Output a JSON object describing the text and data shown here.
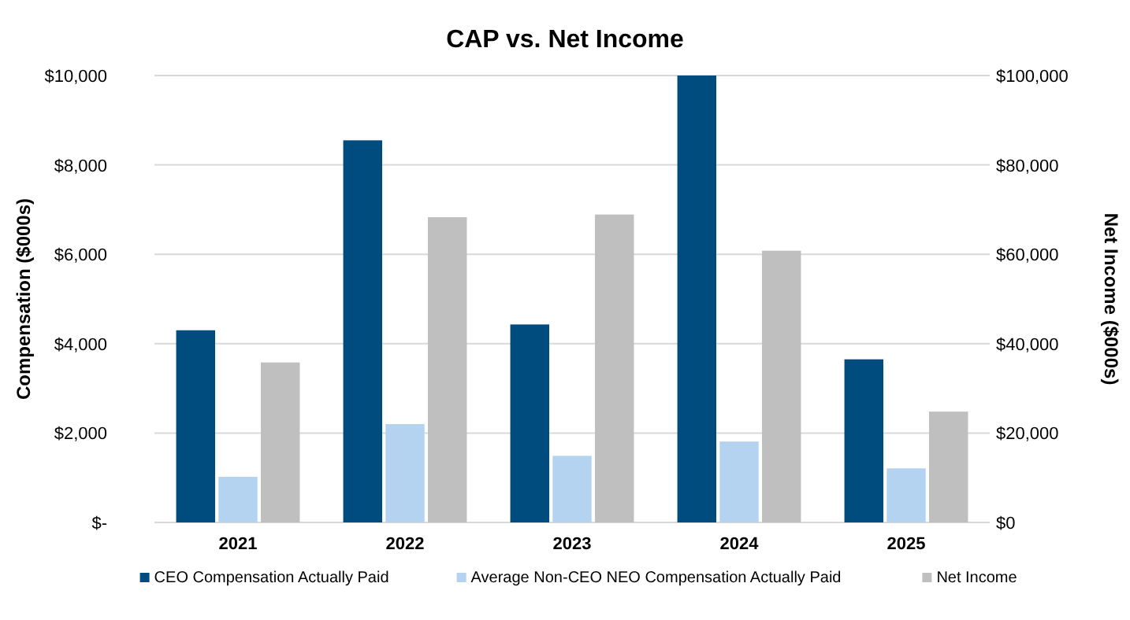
{
  "chart_data": {
    "type": "bar",
    "title": "CAP vs. Net Income",
    "ylabel": "Compensation ($000s)",
    "y2label": "Net Income ($000s)",
    "categories": [
      "2021",
      "2022",
      "2023",
      "2024",
      "2025"
    ],
    "series": [
      {
        "name": "CEO Compensation Actually Paid",
        "color": "#004c7f",
        "values": [
          4300,
          8550,
          4430,
          10000,
          3650
        ]
      },
      {
        "name": "Average Non-CEO NEO Compensation Actually Paid",
        "color": "#b4d3f1",
        "values": [
          1020,
          2200,
          1490,
          1810,
          1210
        ]
      },
      {
        "name": "Net Income",
        "color": "#bfbfbf",
        "axis": "y2",
        "values": [
          35800,
          68300,
          68900,
          60800,
          24800
        ]
      }
    ],
    "ylim": [
      0,
      10000
    ],
    "yticks": [
      {
        "value": 0,
        "label": "$-"
      },
      {
        "value": 2000,
        "label": "$2,000"
      },
      {
        "value": 4000,
        "label": "$4,000"
      },
      {
        "value": 6000,
        "label": "$6,000"
      },
      {
        "value": 8000,
        "label": "$8,000"
      },
      {
        "value": 10000,
        "label": "$10,000"
      }
    ],
    "y2lim": [
      0,
      100000
    ],
    "y2ticks": [
      {
        "value": 0,
        "label": "$0"
      },
      {
        "value": 20000,
        "label": "$20,000"
      },
      {
        "value": 40000,
        "label": "$40,000"
      },
      {
        "value": 60000,
        "label": "$60,000"
      },
      {
        "value": 80000,
        "label": "$80,000"
      },
      {
        "value": 100000,
        "label": "$100,000"
      }
    ],
    "grid": "y",
    "legend": "bottom"
  }
}
